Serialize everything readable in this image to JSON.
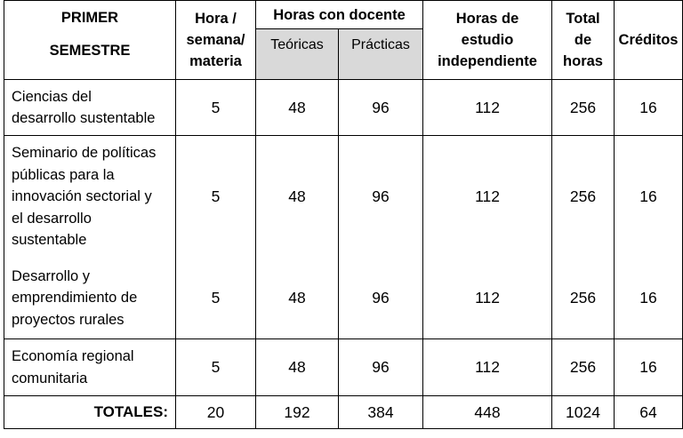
{
  "header": {
    "semester_line1": "PRIMER",
    "semester_line2": "SEMESTRE",
    "hora_l1": "Hora /",
    "hora_l2": "semana/",
    "hora_l3": "materia",
    "docente": "Horas con docente",
    "teoricas": "Teóricas",
    "practicas": "Prácticas",
    "estudio_l1": "Horas de",
    "estudio_l2": "estudio",
    "estudio_l3": "independiente",
    "total_l1": "Total",
    "total_l2": "de",
    "total_l3": "horas",
    "creditos": "Créditos"
  },
  "rows": [
    {
      "subject": [
        "Ciencias del",
        "desarrollo sustentable"
      ],
      "hora": "5",
      "teoricas": "48",
      "practicas": "96",
      "estudio": "112",
      "total": "256",
      "creditos": "16"
    },
    {
      "subject": [
        "Seminario de políticas",
        "públicas para la",
        "innovación sectorial y",
        "el desarrollo",
        "sustentable"
      ],
      "hora": "5",
      "teoricas": "48",
      "practicas": "96",
      "estudio": "112",
      "total": "256",
      "creditos": "16"
    },
    {
      "subject": [
        "Desarrollo y",
        "emprendimiento de",
        "proyectos rurales"
      ],
      "hora": "5",
      "teoricas": "48",
      "practicas": "96",
      "estudio": "112",
      "total": "256",
      "creditos": "16"
    },
    {
      "subject": [
        "Economía regional",
        "comunitaria"
      ],
      "hora": "5",
      "teoricas": "48",
      "practicas": "96",
      "estudio": "112",
      "total": "256",
      "creditos": "16"
    }
  ],
  "totals": {
    "label": "TOTALES:",
    "hora": "20",
    "teoricas": "192",
    "practicas": "384",
    "estudio": "448",
    "total": "1024",
    "creditos": "64"
  }
}
